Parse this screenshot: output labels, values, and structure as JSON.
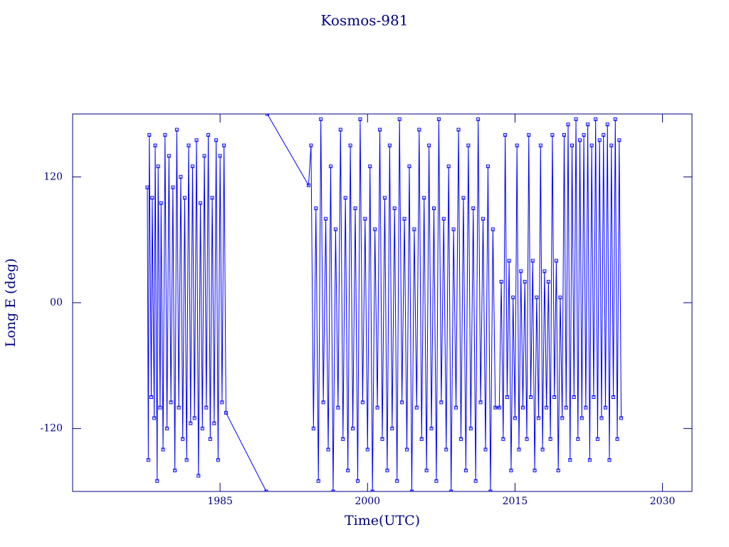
{
  "chart_data": {
    "type": "line",
    "title": "Kosmos-981",
    "xlabel": "Time(UTC)",
    "ylabel": "Long E (deg)",
    "color": "#0000ff",
    "xlim": [
      1970,
      2033
    ],
    "xticks": [
      1985,
      2000,
      2015,
      2030
    ],
    "ylim": [
      -180,
      180
    ],
    "yticks": [
      -120,
      {
        "value": 0,
        "label": "00"
      },
      120
    ],
    "x": [
      1977.6,
      1977.7,
      1977.8,
      1978.0,
      1978.1,
      1978.3,
      1978.4,
      1978.6,
      1978.7,
      1978.9,
      1979.0,
      1979.2,
      1979.4,
      1979.6,
      1979.8,
      1980.0,
      1980.2,
      1980.4,
      1980.6,
      1980.8,
      1981.0,
      1981.2,
      1981.4,
      1981.6,
      1981.8,
      1982.0,
      1982.2,
      1982.4,
      1982.6,
      1982.8,
      1983.0,
      1983.2,
      1983.4,
      1983.6,
      1983.8,
      1984.0,
      1984.2,
      1984.4,
      1984.6,
      1984.8,
      1985.0,
      1985.2,
      1985.4,
      1985.6,
      1989.7,
      1989.75,
      1989.8,
      1994.0,
      1994.25,
      1994.5,
      1994.75,
      1995,
      1995.25,
      1995.5,
      1995.75,
      1996,
      1996.25,
      1996.5,
      1996.75,
      1997,
      1997.25,
      1997.5,
      1997.75,
      1998,
      1998.25,
      1998.5,
      1998.75,
      1999,
      1999.25,
      1999.5,
      1999.75,
      2000,
      2000.25,
      2000.5,
      2000.75,
      2001,
      2001.25,
      2001.5,
      2001.75,
      2002,
      2002.25,
      2002.5,
      2002.75,
      2003,
      2003.25,
      2003.5,
      2003.75,
      2004,
      2004.25,
      2004.5,
      2004.75,
      2005,
      2005.25,
      2005.5,
      2005.75,
      2006,
      2006.25,
      2006.5,
      2006.75,
      2007,
      2007.25,
      2007.5,
      2007.75,
      2008,
      2008.25,
      2008.5,
      2008.75,
      2009,
      2009.25,
      2009.5,
      2009.75,
      2010,
      2010.25,
      2010.5,
      2010.75,
      2011,
      2011.25,
      2011.5,
      2011.75,
      2012,
      2012.25,
      2012.5,
      2012.75,
      2013,
      2013.4,
      2013.6,
      2013.8,
      2014,
      2014.2,
      2014.4,
      2014.6,
      2014.8,
      2015,
      2015.2,
      2015.4,
      2015.6,
      2015.8,
      2016,
      2016.2,
      2016.4,
      2016.6,
      2016.8,
      2017,
      2017.2,
      2017.4,
      2017.6,
      2017.8,
      2018,
      2018.2,
      2018.4,
      2018.6,
      2018.8,
      2019,
      2019.2,
      2019.4,
      2019.6,
      2019.8,
      2020,
      2020.2,
      2020.4,
      2020.6,
      2020.8,
      2021,
      2021.2,
      2021.4,
      2021.6,
      2021.8,
      2022,
      2022.2,
      2022.4,
      2022.6,
      2022.8,
      2023,
      2023.2,
      2023.4,
      2023.6,
      2023.8,
      2024,
      2024.2,
      2024.4,
      2024.6,
      2024.8,
      2025,
      2025.2,
      2025.4,
      2025.6,
      2025.8
    ],
    "values": [
      110,
      -150,
      160,
      -90,
      100,
      -110,
      150,
      -170,
      130,
      -100,
      95,
      -140,
      160,
      -120,
      140,
      -95,
      110,
      -160,
      165,
      -100,
      120,
      -130,
      100,
      -150,
      150,
      -115,
      130,
      -110,
      155,
      -165,
      95,
      -120,
      140,
      -100,
      160,
      -130,
      100,
      -115,
      155,
      -150,
      140,
      -95,
      150,
      -105,
      -180,
      null,
      180,
      112,
      150,
      -120,
      90,
      -170,
      175,
      -95,
      80,
      -140,
      130,
      -180,
      70,
      -100,
      165,
      -130,
      100,
      -160,
      150,
      -120,
      90,
      -170,
      175,
      -95,
      80,
      -140,
      130,
      -180,
      70,
      -100,
      165,
      -130,
      100,
      -160,
      150,
      -120,
      90,
      -170,
      175,
      -95,
      80,
      -140,
      130,
      -180,
      70,
      -100,
      165,
      -130,
      100,
      -160,
      150,
      -120,
      90,
      -170,
      175,
      -95,
      80,
      -140,
      130,
      -180,
      70,
      -100,
      165,
      -130,
      100,
      -160,
      150,
      -120,
      90,
      -170,
      175,
      -95,
      80,
      -140,
      130,
      -180,
      70,
      -100,
      -100,
      20,
      -130,
      160,
      -90,
      40,
      -160,
      5,
      -110,
      150,
      -140,
      30,
      -100,
      20,
      -130,
      160,
      -90,
      40,
      -160,
      5,
      -110,
      150,
      -140,
      30,
      -100,
      20,
      -130,
      160,
      -90,
      40,
      -160,
      5,
      -110,
      160,
      -100,
      170,
      -150,
      150,
      -90,
      175,
      -130,
      155,
      -110,
      160,
      -100,
      170,
      -150,
      150,
      -90,
      175,
      -130,
      155,
      -110,
      160,
      -100,
      170,
      -150,
      150,
      -90,
      175,
      -130,
      155,
      -110
    ]
  }
}
